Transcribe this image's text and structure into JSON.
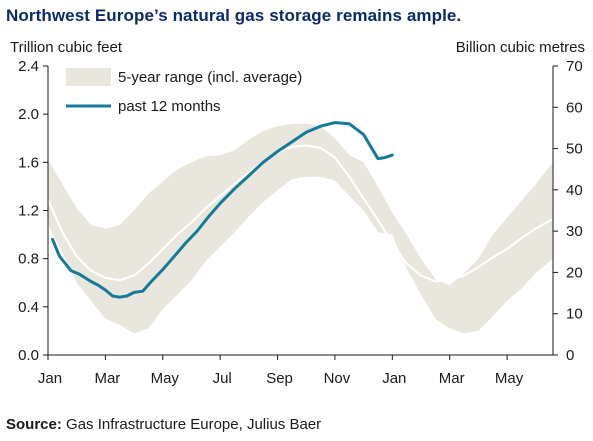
{
  "chart_data": {
    "type": "area",
    "title": "Northwest Europe’s natural gas storage remains ample.",
    "ylabel_left": "Trillion cubic feet",
    "ylabel_right": "Billion cubic metres",
    "y_left_lim": [
      0,
      2.4
    ],
    "y_right_lim": [
      0,
      70
    ],
    "y_left_ticks": [
      "0.0",
      "0.4",
      "0.8",
      "1.2",
      "1.6",
      "2.0",
      "2.4"
    ],
    "y_right_ticks": [
      "0",
      "10",
      "20",
      "30",
      "40",
      "50",
      "60",
      "70"
    ],
    "x_ticks": [
      "Jan",
      "Mar",
      "May",
      "Jul",
      "Sep",
      "Nov",
      "Jan",
      "Mar",
      "May"
    ],
    "x_lim": [
      0,
      17.6
    ],
    "grid": false,
    "legend_position": "top-left",
    "colors": {
      "range_fill": "#e9e6de",
      "average_line": "#ffffff",
      "past12_line": "#137b9a"
    },
    "series": [
      {
        "name": "5-year range (incl. average)",
        "kind": "range",
        "x": [
          0,
          0.5,
          1,
          1.5,
          2,
          2.5,
          3,
          3.5,
          4,
          4.5,
          5,
          5.5,
          6,
          6.5,
          7,
          7.5,
          8,
          8.5,
          9,
          9.5,
          10,
          10.5,
          11,
          11.5,
          12,
          12.5,
          13,
          13.5,
          14,
          14.5,
          15,
          15.5,
          16,
          16.5,
          17,
          17.6
        ],
        "low": [
          1.08,
          0.85,
          0.6,
          0.45,
          0.3,
          0.25,
          0.18,
          0.22,
          0.38,
          0.5,
          0.62,
          0.78,
          0.9,
          1.02,
          1.15,
          1.27,
          1.37,
          1.46,
          1.48,
          1.48,
          1.45,
          1.32,
          1.2,
          1.02,
          1.0,
          0.72,
          0.5,
          0.3,
          0.22,
          0.18,
          0.2,
          0.32,
          0.45,
          0.55,
          0.68,
          0.8
        ],
        "high": [
          1.62,
          1.42,
          1.22,
          1.08,
          1.05,
          1.08,
          1.2,
          1.34,
          1.44,
          1.54,
          1.6,
          1.65,
          1.66,
          1.7,
          1.79,
          1.86,
          1.9,
          1.92,
          1.92,
          1.9,
          1.8,
          1.66,
          1.6,
          1.4,
          1.18,
          1.0,
          0.8,
          0.63,
          0.58,
          0.68,
          0.8,
          1.0,
          1.14,
          1.28,
          1.42,
          1.6
        ]
      },
      {
        "name": "average",
        "kind": "line",
        "x": [
          0,
          0.5,
          1,
          1.5,
          2,
          2.5,
          3,
          3.5,
          4,
          4.5,
          5,
          5.5,
          6,
          6.5,
          7,
          7.5,
          8,
          8.5,
          9,
          9.5,
          10,
          10.5,
          11,
          11.5,
          12,
          12.5,
          13,
          13.5,
          14,
          14.5,
          15,
          15.5,
          16,
          16.5,
          17,
          17.6
        ],
        "values": [
          1.29,
          1.02,
          0.82,
          0.7,
          0.64,
          0.62,
          0.66,
          0.76,
          0.88,
          1.0,
          1.1,
          1.22,
          1.32,
          1.42,
          1.52,
          1.6,
          1.68,
          1.73,
          1.74,
          1.72,
          1.64,
          1.48,
          1.3,
          1.12,
          0.93,
          0.76,
          0.66,
          0.61,
          0.62,
          0.66,
          0.73,
          0.81,
          0.88,
          0.97,
          1.05,
          1.13
        ]
      },
      {
        "name": "past 12 months",
        "kind": "line",
        "x": [
          0.16,
          0.4,
          0.8,
          1.1,
          1.5,
          1.75,
          2.0,
          2.25,
          2.5,
          2.75,
          3.0,
          3.3,
          3.6,
          4.0,
          4.4,
          4.8,
          5.2,
          5.6,
          6.0,
          6.5,
          7.0,
          7.5,
          8.0,
          8.5,
          9.0,
          9.5,
          10.0,
          10.5,
          11.0,
          11.25,
          11.5,
          11.75,
          12.0
        ],
        "values": [
          0.96,
          0.82,
          0.7,
          0.67,
          0.61,
          0.58,
          0.54,
          0.49,
          0.48,
          0.49,
          0.52,
          0.53,
          0.61,
          0.71,
          0.82,
          0.93,
          1.03,
          1.15,
          1.26,
          1.38,
          1.49,
          1.6,
          1.69,
          1.77,
          1.85,
          1.9,
          1.93,
          1.92,
          1.83,
          1.73,
          1.63,
          1.64,
          1.66
        ]
      }
    ],
    "legend": [
      {
        "label": "5-year range (incl. average)"
      },
      {
        "label": "past 12 months"
      }
    ]
  },
  "source": {
    "label": "Source:",
    "text": " Gas Infrastructure Europe, Julius Baer"
  }
}
